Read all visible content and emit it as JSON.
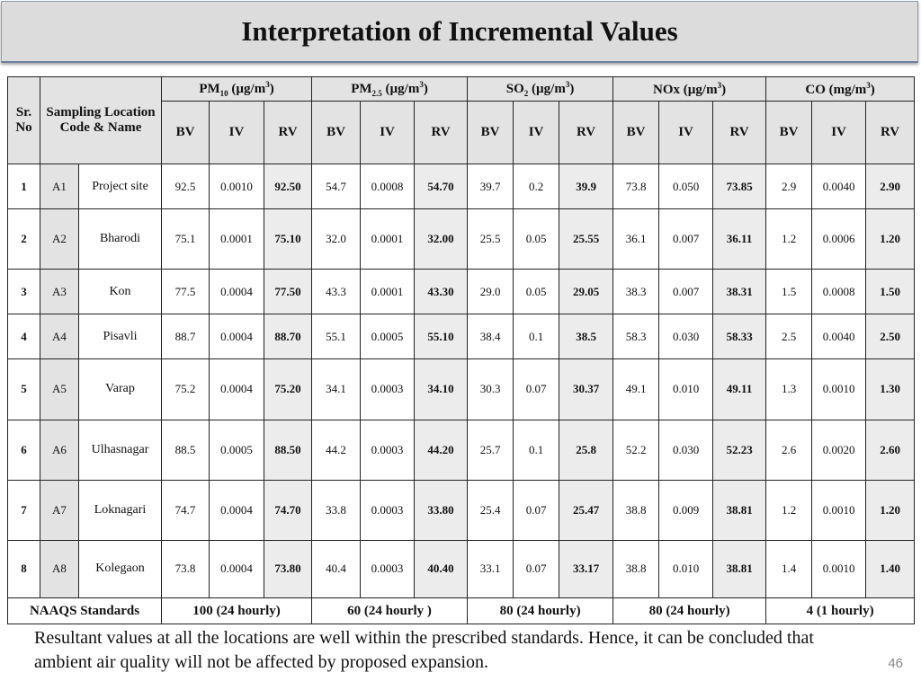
{
  "slide": {
    "title": "Interpretation of Incremental Values",
    "conclusion": "Resultant values at all the locations are well within the prescribed standards. Hence, it can be concluded that ambient air quality will not be affected by proposed expansion.",
    "page_number": "46"
  },
  "table": {
    "col_sr": "Sr. No",
    "col_location": "Sampling Location Code & Name",
    "pollutants": {
      "pm10": {
        "base": "PM",
        "sub": "10",
        "unit_open": " (µg/m",
        "unit_sup": "3",
        "unit_close": ")"
      },
      "pm25": {
        "base": "PM",
        "sub": "2.5",
        "unit_open": " (µg/m",
        "unit_sup": "3",
        "unit_close": ")"
      },
      "so2": {
        "base": "SO",
        "sub": "2",
        "unit_open": " (µg/m",
        "unit_sup": "3",
        "unit_close": ")"
      },
      "nox": {
        "base": "NOx",
        "unit_open": " (µg/m",
        "unit_sup": "3",
        "unit_close": ")"
      },
      "co": {
        "base": "CO",
        "unit_open": " (mg/m",
        "unit_sup": "3",
        "unit_close": ")"
      }
    },
    "sub_headers": [
      "BV",
      "IV",
      "RV"
    ],
    "rows": [
      {
        "sr": "1",
        "code": "A1",
        "name": "Project site",
        "values": [
          "92.5",
          "0.0010",
          "92.50",
          "54.7",
          "0.0008",
          "54.70",
          "39.7",
          "0.2",
          "39.9",
          "73.8",
          "0.050",
          "73.85",
          "2.9",
          "0.0040",
          "2.90"
        ]
      },
      {
        "sr": "2",
        "code": "A2",
        "name": "Bharodi",
        "values": [
          "75.1",
          "0.0001",
          "75.10",
          "32.0",
          "0.0001",
          "32.00",
          "25.5",
          "0.05",
          "25.55",
          "36.1",
          "0.007",
          "36.11",
          "1.2",
          "0.0006",
          "1.20"
        ]
      },
      {
        "sr": "3",
        "code": "A3",
        "name": "Kon",
        "values": [
          "77.5",
          "0.0004",
          "77.50",
          "43.3",
          "0.0001",
          "43.30",
          "29.0",
          "0.05",
          "29.05",
          "38.3",
          "0.007",
          "38.31",
          "1.5",
          "0.0008",
          "1.50"
        ]
      },
      {
        "sr": "4",
        "code": "A4",
        "name": "Pisavli",
        "values": [
          "88.7",
          "0.0004",
          "88.70",
          "55.1",
          "0.0005",
          "55.10",
          "38.4",
          "0.1",
          "38.5",
          "58.3",
          "0.030",
          "58.33",
          "2.5",
          "0.0040",
          "2.50"
        ]
      },
      {
        "sr": "5",
        "code": "A5",
        "name": "Varap",
        "values": [
          "75.2",
          "0.0004",
          "75.20",
          "34.1",
          "0.0003",
          "34.10",
          "30.3",
          "0.07",
          "30.37",
          "49.1",
          "0.010",
          "49.11",
          "1.3",
          "0.0010",
          "1.30"
        ]
      },
      {
        "sr": "6",
        "code": "A6",
        "name": "Ulhasnagar",
        "values": [
          "88.5",
          "0.0005",
          "88.50",
          "44.2",
          "0.0003",
          "44.20",
          "25.7",
          "0.1",
          "25.8",
          "52.2",
          "0.030",
          "52.23",
          "2.6",
          "0.0020",
          "2.60"
        ]
      },
      {
        "sr": "7",
        "code": "A7",
        "name": "Loknagari",
        "values": [
          "74.7",
          "0.0004",
          "74.70",
          "33.8",
          "0.0003",
          "33.80",
          "25.4",
          "0.07",
          "25.47",
          "38.8",
          "0.009",
          "38.81",
          "1.2",
          "0.0010",
          "1.20"
        ]
      },
      {
        "sr": "8",
        "code": "A8",
        "name": "Kolegaon",
        "values": [
          "73.8",
          "0.0004",
          "73.80",
          "40.4",
          "0.0003",
          "40.40",
          "33.1",
          "0.07",
          "33.17",
          "38.8",
          "0.010",
          "38.81",
          "1.4",
          "0.0010",
          "1.40"
        ]
      }
    ],
    "standards": {
      "label": "NAAQS Standards",
      "pm10": "100 (24 hourly)",
      "pm25": "60 (24 hourly )",
      "so2": "80 (24 hourly)",
      "nox": "80 (24 hourly)",
      "co": "4 (1 hourly)"
    }
  }
}
